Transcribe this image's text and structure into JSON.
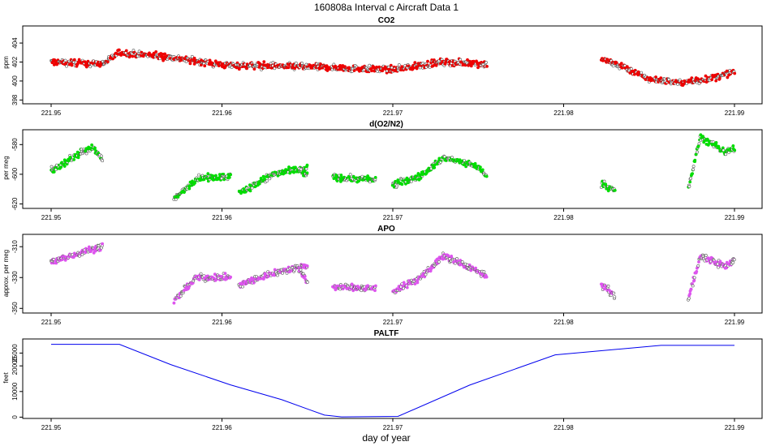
{
  "figure": {
    "title": "160808a   Interval c Aircraft Data 1",
    "xlabel": "day of year"
  },
  "chart_data": [
    {
      "type": "scatter",
      "title": "CO2",
      "ylabel": "ppm",
      "color": "#ee0000",
      "xlim": [
        221.95,
        221.99
      ],
      "ylim": [
        397.6,
        405.8
      ],
      "xticks": [
        "221.95",
        "221.96",
        "221.97",
        "221.98",
        "221.99"
      ],
      "yticks": [
        "398",
        "400",
        "402",
        "404"
      ],
      "segments": [
        {
          "x": [
            221.95,
            221.953,
            221.954,
            221.957,
            221.96,
            221.965,
            221.97,
            221.973,
            221.9755
          ],
          "y": [
            402.0,
            401.8,
            403.0,
            402.5,
            401.7,
            401.5,
            401.2,
            402.0,
            401.8
          ]
        },
        {
          "x": [
            221.9822,
            221.9835,
            221.985,
            221.987,
            221.989,
            221.99
          ],
          "y": [
            402.3,
            401.5,
            400.2,
            399.8,
            400.4,
            401.0
          ]
        }
      ]
    },
    {
      "type": "scatter",
      "title": "d(O2/N2)",
      "ylabel": "per meg",
      "color": "#00dd00",
      "xlim": [
        221.95,
        221.99
      ],
      "ylim": [
        -623,
        -570
      ],
      "xticks": [
        "221.95",
        "221.96",
        "221.97",
        "221.98",
        "221.99"
      ],
      "yticks": [
        "-620",
        "-600",
        "-580"
      ],
      "segments": [
        {
          "x": [
            221.95,
            221.9515,
            221.9525,
            221.953
          ],
          "y": [
            -598,
            -587,
            -582,
            -590
          ]
        },
        {
          "x": [
            221.9572,
            221.9585,
            221.9605
          ],
          "y": [
            -617,
            -603,
            -601
          ]
        },
        {
          "x": [
            221.961,
            221.963,
            221.965
          ],
          "y": [
            -613,
            -600,
            -596
          ]
        },
        {
          "x": [
            221.9645,
            221.965
          ],
          "y": [
            -597,
            -601
          ]
        },
        {
          "x": [
            221.9665,
            221.969
          ],
          "y": [
            -602,
            -604
          ]
        },
        {
          "x": [
            221.97,
            221.9715,
            221.973,
            221.9748,
            221.9755
          ],
          "y": [
            -607,
            -602,
            -589,
            -594,
            -601
          ]
        },
        {
          "x": [
            221.9822,
            221.983
          ],
          "y": [
            -606,
            -611
          ]
        },
        {
          "x": [
            221.9873,
            221.988,
            221.9895,
            221.99
          ],
          "y": [
            -610,
            -575,
            -585,
            -582
          ]
        }
      ]
    },
    {
      "type": "scatter",
      "title": "APO",
      "ylabel": "approx. per meg",
      "color": "#dd55ee",
      "xlim": [
        221.95,
        221.99
      ],
      "ylim": [
        -353,
        -302
      ],
      "xticks": [
        "221.95",
        "221.96",
        "221.97",
        "221.98",
        "221.99"
      ],
      "yticks": [
        "-350",
        "-330",
        "-310"
      ],
      "segments": [
        {
          "x": [
            221.95,
            221.952,
            221.953
          ],
          "y": [
            -320,
            -313,
            -310
          ]
        },
        {
          "x": [
            221.9572,
            221.9585,
            221.9605
          ],
          "y": [
            -345,
            -330,
            -330
          ]
        },
        {
          "x": [
            221.961,
            221.963,
            221.965
          ],
          "y": [
            -335,
            -327,
            -322
          ]
        },
        {
          "x": [
            221.9645,
            221.965
          ],
          "y": [
            -325,
            -333
          ]
        },
        {
          "x": [
            221.9665,
            221.969
          ],
          "y": [
            -336,
            -337
          ]
        },
        {
          "x": [
            221.97,
            221.9715,
            221.973,
            221.9748,
            221.9755
          ],
          "y": [
            -339,
            -331,
            -316,
            -325,
            -330
          ]
        },
        {
          "x": [
            221.9822,
            221.983
          ],
          "y": [
            -334,
            -342
          ]
        },
        {
          "x": [
            221.9873,
            221.988,
            221.9895,
            221.99
          ],
          "y": [
            -344,
            -316,
            -323,
            -318
          ]
        }
      ]
    },
    {
      "type": "line",
      "title": "PALTF",
      "ylabel": "feet",
      "color": "#0000ee",
      "xlim": [
        221.95,
        221.99
      ],
      "ylim": [
        -500,
        30500
      ],
      "xticks": [
        "221.95",
        "221.96",
        "221.97",
        "221.98",
        "221.99"
      ],
      "yticks": [
        "0",
        "10000",
        "20000",
        "25000"
      ],
      "x": [
        221.95,
        221.954,
        221.957,
        221.9605,
        221.9635,
        221.966,
        221.967,
        221.9703,
        221.9745,
        221.9795,
        221.9857,
        221.99
      ],
      "y": [
        28400,
        28400,
        20500,
        12600,
        6800,
        800,
        100,
        300,
        12500,
        24300,
        28000,
        28000
      ]
    }
  ]
}
